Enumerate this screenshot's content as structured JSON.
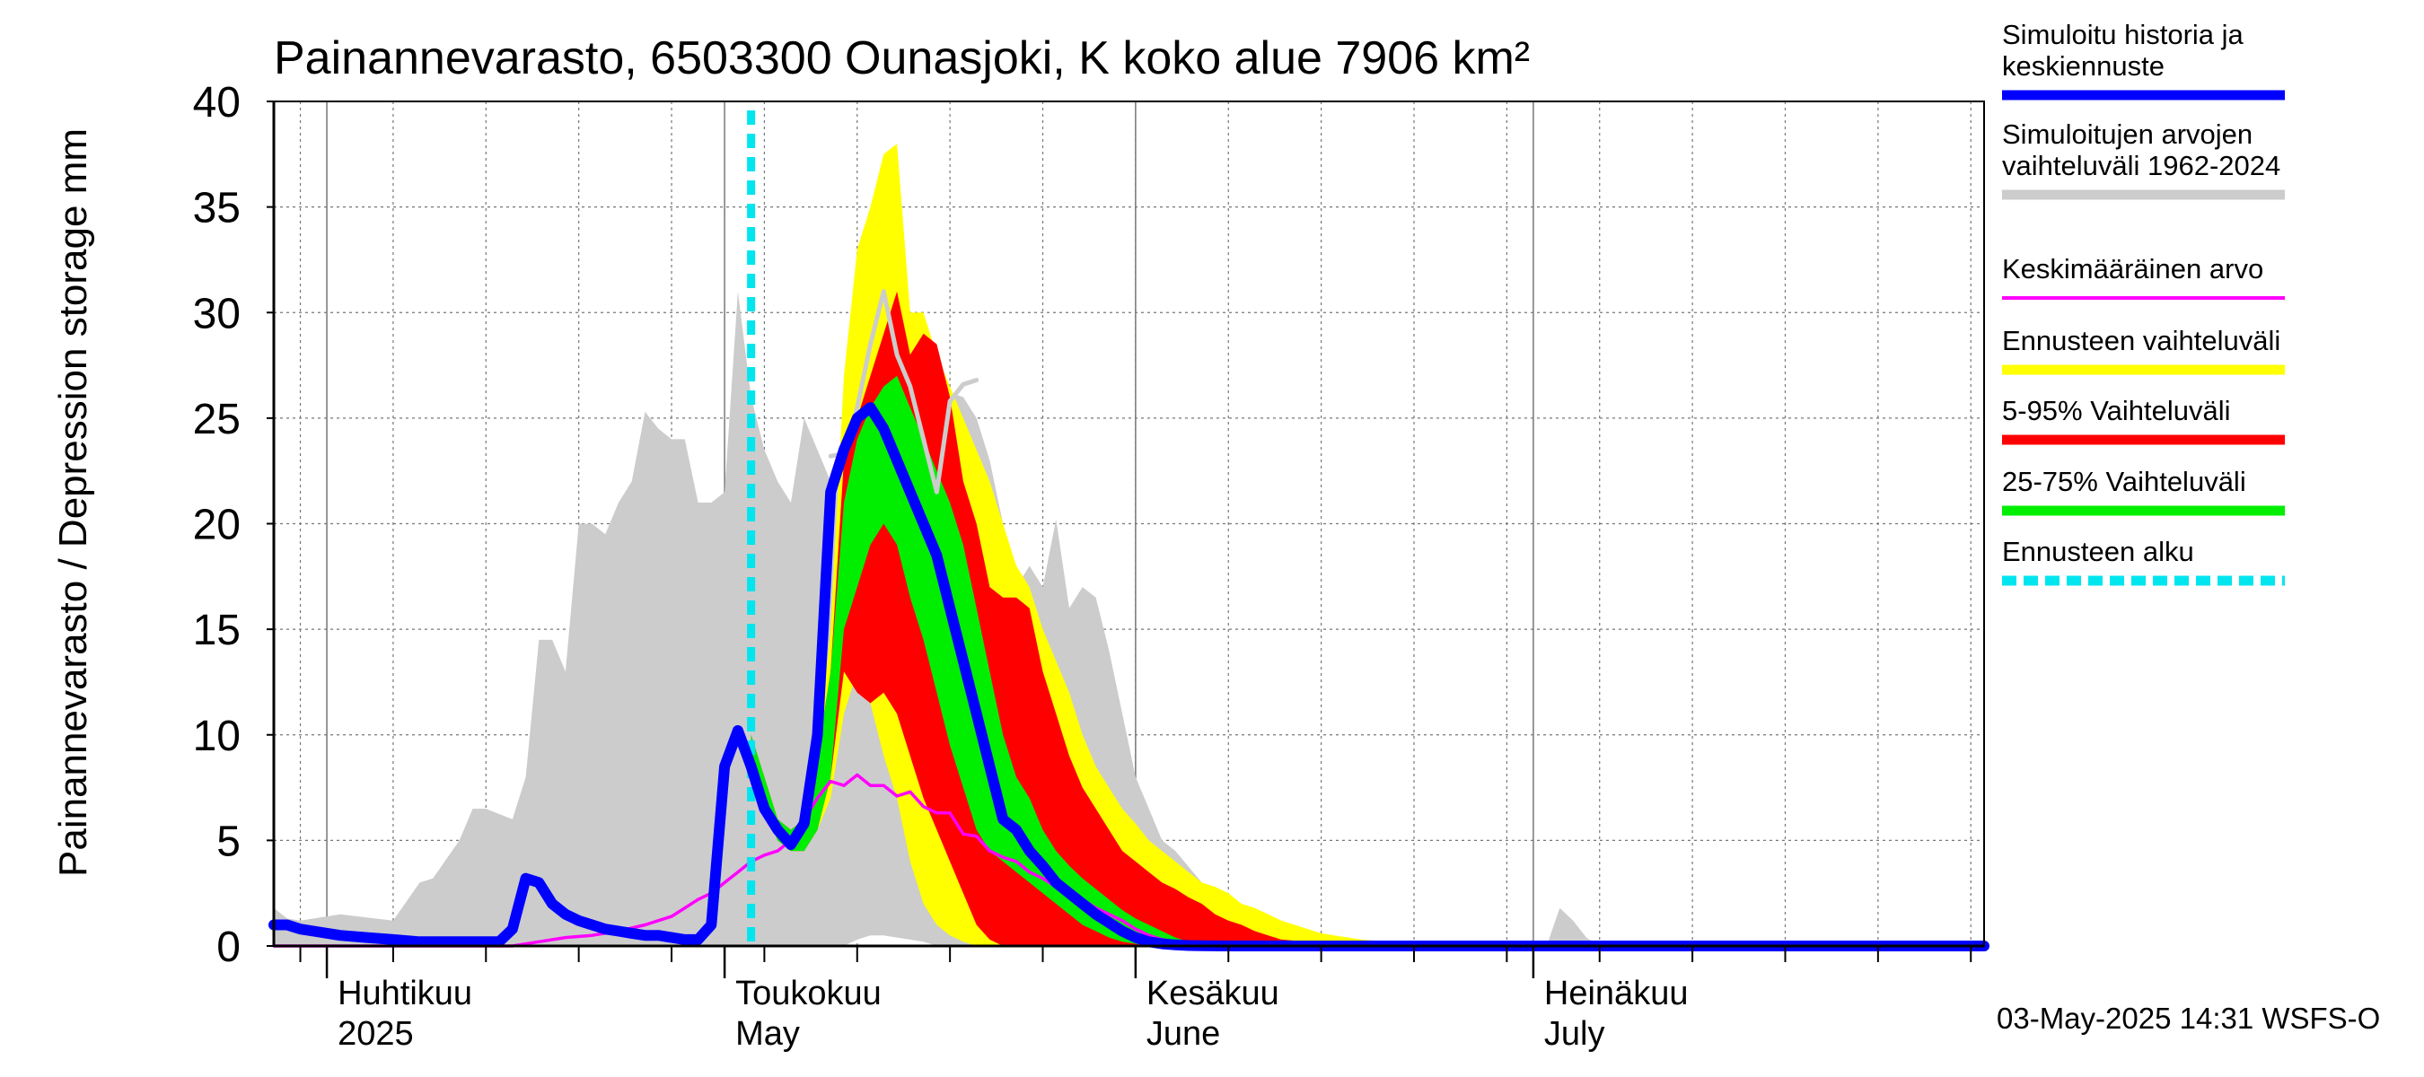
{
  "chart_data": {
    "type": "area",
    "title": "Painannevarasto, 6503300 Ounasjoki, K koko alue 7906 km²",
    "ylabel": "Painannevarasto / Depression storage    mm",
    "ylim": [
      0,
      40
    ],
    "yticks": [
      "0",
      "5",
      "10",
      "15",
      "20",
      "25",
      "30",
      "35",
      "40"
    ],
    "xlim": [
      "2025-03-28",
      "2025-08-04"
    ],
    "grid": true,
    "legend_position": "right",
    "months": [
      {
        "date": "2025-04-01",
        "label_fi": "Huhtikuu",
        "label_en": "2025"
      },
      {
        "date": "2025-05-01",
        "label_fi": "Toukokuu",
        "label_en": "May"
      },
      {
        "date": "2025-06-01",
        "label_fi": "Kesäkuu",
        "label_en": "June"
      },
      {
        "date": "2025-07-01",
        "label_fi": "Heinäkuu",
        "label_en": "July"
      }
    ],
    "forecast_start": "2025-05-03",
    "footer": "03-May-2025 14:31 WSFS-O",
    "legend": [
      {
        "label": "Simuloitu historia ja keskiennuste",
        "color": "#0000ff",
        "style": "thick"
      },
      {
        "label": "Simuloitujen arvojen vaihteluväli 1962-2024",
        "color": "#cccccc",
        "style": "thick"
      },
      {
        "label": "Keskimääräinen arvo",
        "color": "#ff00ff",
        "style": "thin"
      },
      {
        "label": "Ennusteen vaihteluväli",
        "color": "#ffff00",
        "style": "thick"
      },
      {
        "label": "5-95% Vaihteluväli",
        "color": "#ff0000",
        "style": "thick"
      },
      {
        "label": "25-75% Vaihteluväli",
        "color": "#00ee00",
        "style": "thick"
      },
      {
        "label": "Ennusteen alku",
        "color": "#00e5ee",
        "style": "dashed"
      }
    ],
    "series": {
      "historical_range": {
        "color": "#cccccc",
        "x": [
          "2025-03-28",
          "2025-03-29",
          "2025-03-30",
          "2025-04-02",
          "2025-04-06",
          "2025-04-08",
          "2025-04-09",
          "2025-04-11",
          "2025-04-12",
          "2025-04-13",
          "2025-04-15",
          "2025-04-16",
          "2025-04-17",
          "2025-04-18",
          "2025-04-19",
          "2025-04-20",
          "2025-04-21",
          "2025-04-22",
          "2025-04-23",
          "2025-04-24",
          "2025-04-25",
          "2025-04-26",
          "2025-04-27",
          "2025-04-28",
          "2025-04-29",
          "2025-04-30",
          "2025-05-01",
          "2025-05-02",
          "2025-05-03",
          "2025-05-04",
          "2025-05-05",
          "2025-05-06",
          "2025-05-07",
          "2025-05-08",
          "2025-05-09",
          "2025-05-10",
          "2025-05-11",
          "2025-05-12",
          "2025-05-13",
          "2025-05-14",
          "2025-05-15",
          "2025-05-16",
          "2025-05-17",
          "2025-05-18",
          "2025-05-19",
          "2025-05-20",
          "2025-05-21",
          "2025-05-22",
          "2025-05-23",
          "2025-05-24",
          "2025-05-25",
          "2025-05-26",
          "2025-05-27",
          "2025-05-28",
          "2025-05-29",
          "2025-05-30",
          "2025-05-31",
          "2025-06-01",
          "2025-06-02",
          "2025-06-03",
          "2025-06-04",
          "2025-06-06",
          "2025-06-08",
          "2025-06-10",
          "2025-06-12",
          "2025-06-14",
          "2025-06-16",
          "2025-06-19",
          "2025-06-22",
          "2025-06-26",
          "2025-07-02",
          "2025-07-03",
          "2025-07-04",
          "2025-07-05",
          "2025-07-06",
          "2025-07-10",
          "2025-07-20",
          "2025-08-04"
        ],
        "low": [
          0,
          0,
          0,
          0,
          0,
          0,
          0,
          0,
          0,
          0,
          0,
          0,
          0,
          0,
          0,
          0,
          0,
          0,
          0,
          0,
          0,
          0,
          0,
          0,
          0,
          0,
          0,
          0,
          0,
          0,
          0,
          0,
          0,
          0,
          0,
          0,
          0.3,
          0.5,
          0.5,
          0.4,
          0.3,
          0.2,
          0,
          0,
          0,
          0,
          0,
          0,
          0,
          0,
          0,
          0,
          0,
          0,
          0,
          0,
          0,
          0,
          0,
          0,
          0,
          0,
          0,
          0,
          0,
          0,
          0,
          0,
          0,
          0,
          0,
          0,
          0,
          0,
          0,
          0,
          0,
          0
        ],
        "high": [
          1.8,
          1.3,
          1.2,
          1.5,
          1.2,
          3,
          3.2,
          5,
          6.5,
          6.5,
          6,
          8,
          14.5,
          14.5,
          13,
          20,
          20,
          19.5,
          21,
          22,
          25.3,
          24.5,
          24,
          24,
          21,
          21,
          21.5,
          31,
          26,
          23.5,
          22,
          21,
          25,
          23.5,
          22,
          23,
          24.5,
          23,
          22.5,
          24.5,
          26,
          27,
          25,
          26.2,
          26,
          25,
          23,
          20,
          17,
          18,
          17,
          20.2,
          16,
          17,
          16.5,
          14,
          11,
          8,
          6.5,
          5,
          4.5,
          3,
          2,
          1.2,
          0.8,
          0.5,
          0.2,
          0,
          0,
          0,
          0,
          1.8,
          1.2,
          0.4,
          0,
          0,
          0,
          0
        ]
      },
      "forecast_range": {
        "color": "#ffff00",
        "x": [
          "2025-05-03",
          "2025-05-04",
          "2025-05-05",
          "2025-05-06",
          "2025-05-07",
          "2025-05-08",
          "2025-05-09",
          "2025-05-10",
          "2025-05-11",
          "2025-05-12",
          "2025-05-13",
          "2025-05-14",
          "2025-05-15",
          "2025-05-16",
          "2025-05-17",
          "2025-05-18",
          "2025-05-19",
          "2025-05-20",
          "2025-05-21",
          "2025-05-22",
          "2025-05-23",
          "2025-05-24",
          "2025-05-25",
          "2025-05-26",
          "2025-05-27",
          "2025-05-28",
          "2025-05-29",
          "2025-05-30",
          "2025-05-31",
          "2025-06-01",
          "2025-06-02",
          "2025-06-03",
          "2025-06-04",
          "2025-06-05",
          "2025-06-06",
          "2025-06-07",
          "2025-06-08",
          "2025-06-09",
          "2025-06-10",
          "2025-06-11",
          "2025-06-12",
          "2025-06-13",
          "2025-06-14",
          "2025-06-15",
          "2025-06-16",
          "2025-06-18",
          "2025-06-20",
          "2025-06-24",
          "2025-08-04"
        ],
        "low": [
          9,
          6.5,
          5,
          4.5,
          4.5,
          5.5,
          7,
          11,
          13,
          11.5,
          9,
          7,
          4,
          2,
          1,
          0.5,
          0.2,
          0,
          0,
          0,
          0,
          0,
          0,
          0,
          0,
          0,
          0,
          0,
          0,
          0,
          0,
          0,
          0,
          0,
          0,
          0,
          0,
          0,
          0,
          0,
          0,
          0,
          0,
          0,
          0,
          0,
          0,
          0,
          0
        ],
        "high": [
          10,
          8,
          6,
          5.5,
          6,
          9,
          15,
          27,
          33,
          35,
          37.5,
          38,
          30,
          30,
          28,
          26.5,
          25,
          23.5,
          22,
          20,
          18,
          17,
          15,
          13.5,
          12,
          10,
          8.5,
          7.5,
          6.5,
          5.8,
          5,
          4.5,
          4,
          3.5,
          3,
          2.8,
          2.5,
          2,
          1.8,
          1.5,
          1.2,
          1,
          0.8,
          0.6,
          0.5,
          0.3,
          0.2,
          0.1,
          0
        ]
      },
      "range_5_95": {
        "color": "#ff0000",
        "x": [
          "2025-05-03",
          "2025-05-04",
          "2025-05-05",
          "2025-05-06",
          "2025-05-07",
          "2025-05-08",
          "2025-05-09",
          "2025-05-10",
          "2025-05-11",
          "2025-05-12",
          "2025-05-13",
          "2025-05-14",
          "2025-05-15",
          "2025-05-16",
          "2025-05-17",
          "2025-05-18",
          "2025-05-19",
          "2025-05-20",
          "2025-05-21",
          "2025-05-22",
          "2025-05-23",
          "2025-05-24",
          "2025-05-25",
          "2025-05-26",
          "2025-05-27",
          "2025-05-28",
          "2025-05-29",
          "2025-05-30",
          "2025-05-31",
          "2025-06-01",
          "2025-06-02",
          "2025-06-03",
          "2025-06-04",
          "2025-06-05",
          "2025-06-06",
          "2025-06-07",
          "2025-06-08",
          "2025-06-09",
          "2025-06-10",
          "2025-06-11",
          "2025-06-12",
          "2025-06-14",
          "2025-06-16",
          "2025-06-20",
          "2025-08-04"
        ],
        "low": [
          9,
          6.5,
          5,
          4.5,
          4.5,
          5.5,
          8,
          13,
          12,
          11.5,
          12,
          11,
          9,
          7,
          5.5,
          4,
          2.5,
          1,
          0.3,
          0,
          0,
          0,
          0,
          0,
          0,
          0,
          0,
          0,
          0,
          0,
          0,
          0,
          0,
          0,
          0,
          0,
          0,
          0,
          0,
          0,
          0,
          0,
          0,
          0,
          0
        ],
        "high": [
          10,
          8,
          6,
          5.5,
          6,
          9,
          13,
          23,
          25,
          27,
          29,
          31,
          28,
          29,
          28.5,
          26,
          22,
          20,
          17,
          16.5,
          16.5,
          16,
          13,
          11,
          9,
          7.5,
          6.5,
          5.5,
          4.5,
          4,
          3.5,
          3,
          2.7,
          2.3,
          2,
          1.5,
          1.2,
          1,
          0.7,
          0.5,
          0.3,
          0.2,
          0.1,
          0.05,
          0
        ]
      },
      "range_25_75": {
        "color": "#00ee00",
        "x": [
          "2025-05-03",
          "2025-05-04",
          "2025-05-05",
          "2025-05-06",
          "2025-05-07",
          "2025-05-08",
          "2025-05-09",
          "2025-05-10",
          "2025-05-11",
          "2025-05-12",
          "2025-05-13",
          "2025-05-14",
          "2025-05-15",
          "2025-05-16",
          "2025-05-17",
          "2025-05-18",
          "2025-05-19",
          "2025-05-20",
          "2025-05-21",
          "2025-05-22",
          "2025-05-23",
          "2025-05-24",
          "2025-05-25",
          "2025-05-26",
          "2025-05-27",
          "2025-05-28",
          "2025-05-29",
          "2025-05-30",
          "2025-05-31",
          "2025-06-01",
          "2025-06-02",
          "2025-06-03",
          "2025-06-04",
          "2025-06-05",
          "2025-06-06",
          "2025-06-08",
          "2025-06-10",
          "2025-06-14",
          "2025-08-04"
        ],
        "low": [
          9,
          6.5,
          5,
          4.5,
          4.5,
          5.5,
          8,
          15,
          17,
          19,
          20,
          19,
          16.5,
          14.5,
          12,
          9.5,
          7.5,
          5.5,
          4.5,
          4,
          3.5,
          3,
          2.5,
          2,
          1.5,
          1,
          0.7,
          0.4,
          0.2,
          0.1,
          0,
          0,
          0,
          0,
          0,
          0,
          0,
          0,
          0
        ],
        "high": [
          10,
          8,
          6,
          5.5,
          6,
          9,
          13,
          21,
          24,
          25.5,
          26.5,
          27,
          25.5,
          24,
          22.5,
          21,
          19,
          16,
          13,
          10,
          8,
          7,
          5.5,
          4.5,
          3.8,
          3.2,
          2.7,
          2.2,
          1.7,
          1.3,
          1,
          0.7,
          0.4,
          0.2,
          0.1,
          0.05,
          0,
          0,
          0
        ]
      },
      "median_simulation": {
        "color": "#0000ff",
        "x": [
          "2025-03-28",
          "2025-03-29",
          "2025-03-30",
          "2025-03-31",
          "2025-04-02",
          "2025-04-04",
          "2025-04-06",
          "2025-04-08",
          "2025-04-10",
          "2025-04-12",
          "2025-04-14",
          "2025-04-15",
          "2025-04-16",
          "2025-04-17",
          "2025-04-18",
          "2025-04-19",
          "2025-04-20",
          "2025-04-21",
          "2025-04-22",
          "2025-04-23",
          "2025-04-24",
          "2025-04-25",
          "2025-04-26",
          "2025-04-27",
          "2025-04-28",
          "2025-04-29",
          "2025-04-30",
          "2025-05-01",
          "2025-05-02",
          "2025-05-03",
          "2025-05-04",
          "2025-05-05",
          "2025-05-06",
          "2025-05-07",
          "2025-05-08",
          "2025-05-09",
          "2025-05-10",
          "2025-05-11",
          "2025-05-12",
          "2025-05-13",
          "2025-05-14",
          "2025-05-15",
          "2025-05-16",
          "2025-05-17",
          "2025-05-18",
          "2025-05-19",
          "2025-05-20",
          "2025-05-21",
          "2025-05-22",
          "2025-05-23",
          "2025-05-24",
          "2025-05-25",
          "2025-05-26",
          "2025-05-27",
          "2025-05-28",
          "2025-05-29",
          "2025-05-30",
          "2025-05-31",
          "2025-06-01",
          "2025-06-02",
          "2025-06-03",
          "2025-06-04",
          "2025-06-05",
          "2025-06-06",
          "2025-06-08",
          "2025-06-12",
          "2025-08-04"
        ],
        "y": [
          1,
          1,
          0.8,
          0.7,
          0.5,
          0.4,
          0.3,
          0.2,
          0.2,
          0.2,
          0.2,
          0.8,
          3.2,
          3,
          2,
          1.5,
          1.2,
          1,
          0.8,
          0.7,
          0.6,
          0.5,
          0.5,
          0.4,
          0.3,
          0.3,
          1,
          8.5,
          10.2,
          8.5,
          6.5,
          5.5,
          4.8,
          5.8,
          10,
          21.5,
          23.5,
          25,
          25.5,
          24.5,
          23,
          21.5,
          20,
          18.5,
          16,
          13.5,
          11,
          8.5,
          6,
          5.5,
          4.5,
          3.8,
          3,
          2.5,
          2,
          1.5,
          1.1,
          0.7,
          0.4,
          0.2,
          0.1,
          0.05,
          0.02,
          0.01,
          0,
          0,
          0
        ]
      },
      "mean_value": {
        "color": "#ff00ff",
        "x": [
          "2025-03-28",
          "2025-04-15",
          "2025-04-17",
          "2025-04-19",
          "2025-04-21",
          "2025-04-23",
          "2025-04-25",
          "2025-04-27",
          "2025-04-28",
          "2025-04-29",
          "2025-04-30",
          "2025-05-01",
          "2025-05-02",
          "2025-05-03",
          "2025-05-04",
          "2025-05-05",
          "2025-05-06",
          "2025-05-07",
          "2025-05-08",
          "2025-05-09",
          "2025-05-10",
          "2025-05-11",
          "2025-05-12",
          "2025-05-13",
          "2025-05-14",
          "2025-05-15",
          "2025-05-16",
          "2025-05-17",
          "2025-05-18",
          "2025-05-19",
          "2025-05-20",
          "2025-05-21",
          "2025-05-22",
          "2025-05-23",
          "2025-05-24",
          "2025-05-25",
          "2025-05-26",
          "2025-05-27",
          "2025-05-28",
          "2025-05-29",
          "2025-05-30",
          "2025-05-31",
          "2025-06-01",
          "2025-06-02",
          "2025-06-03",
          "2025-06-05",
          "2025-06-08",
          "2025-06-10",
          "2025-08-04"
        ],
        "y": [
          0,
          0,
          0.2,
          0.4,
          0.5,
          0.7,
          1,
          1.4,
          1.8,
          2.2,
          2.5,
          3,
          3.5,
          4,
          4.3,
          4.5,
          5,
          6,
          7,
          7.8,
          7.6,
          8.1,
          7.6,
          7.6,
          7.1,
          7.3,
          6.6,
          6.3,
          6.3,
          5.3,
          5.2,
          4.5,
          4.2,
          4,
          3.5,
          3.2,
          2.8,
          2.5,
          2.2,
          1.8,
          1.5,
          1.2,
          0.8,
          0.5,
          0.3,
          0.1,
          0.05,
          0,
          0
        ]
      },
      "median_history": {
        "color": "#cccccc",
        "x": [
          "2025-05-09",
          "2025-05-10",
          "2025-05-11",
          "2025-05-12",
          "2025-05-13",
          "2025-05-14",
          "2025-05-15",
          "2025-05-16",
          "2025-05-17",
          "2025-05-18",
          "2025-05-19",
          "2025-05-20"
        ],
        "y": [
          23.2,
          23.3,
          25.5,
          28.5,
          31,
          28,
          26.5,
          24,
          21.5,
          25.8,
          26.6,
          26.8
        ]
      }
    }
  }
}
